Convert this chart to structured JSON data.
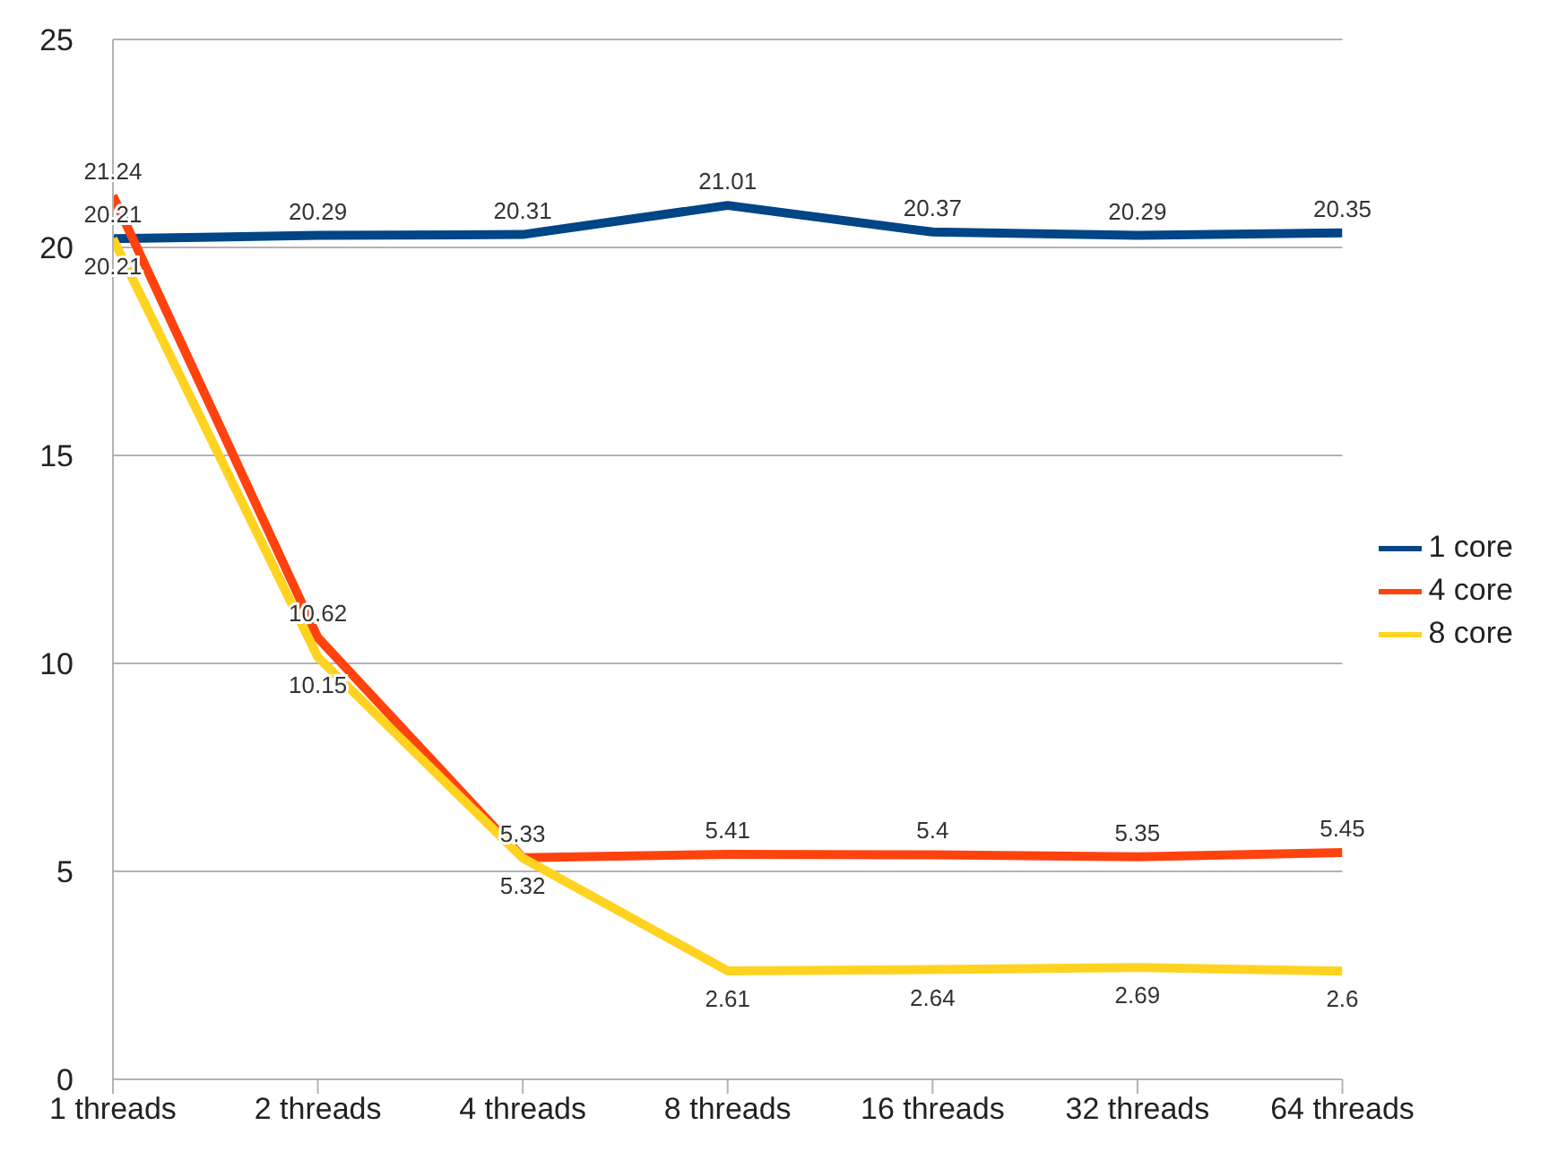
{
  "chart_data": {
    "type": "line",
    "categories": [
      "1 threads",
      "2 threads",
      "4 threads",
      "8 threads",
      "16 threads",
      "32 threads",
      "64 threads"
    ],
    "series": [
      {
        "name": "1 core",
        "color": "#004586",
        "values": [
          20.21,
          20.29,
          20.31,
          21.01,
          20.37,
          20.29,
          20.35
        ]
      },
      {
        "name": "4 core",
        "color": "#ff420e",
        "values": [
          21.24,
          10.62,
          5.33,
          5.41,
          5.4,
          5.35,
          5.45
        ]
      },
      {
        "name": "8 core",
        "color": "#ffd320",
        "values": [
          20.21,
          10.15,
          5.32,
          2.61,
          2.64,
          2.69,
          2.6
        ]
      }
    ],
    "ylim": [
      0,
      25
    ],
    "yticks": [
      0,
      5,
      10,
      15,
      20,
      25
    ],
    "grid": "y",
    "legend": "right",
    "marker": "none",
    "line_style": "solid",
    "data_labels": true
  }
}
